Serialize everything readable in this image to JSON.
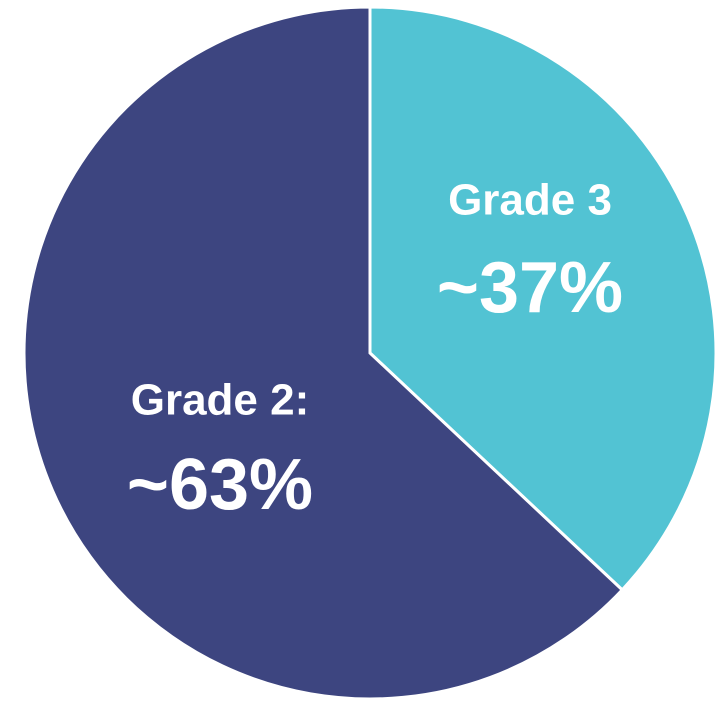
{
  "chart_data": {
    "type": "pie",
    "categories": [
      "Grade 3",
      "Grade 2:"
    ],
    "values": [
      37,
      63
    ],
    "value_labels": [
      "~37%",
      "~63%"
    ],
    "colors": [
      "#52c3d3",
      "#3d4580"
    ]
  }
}
